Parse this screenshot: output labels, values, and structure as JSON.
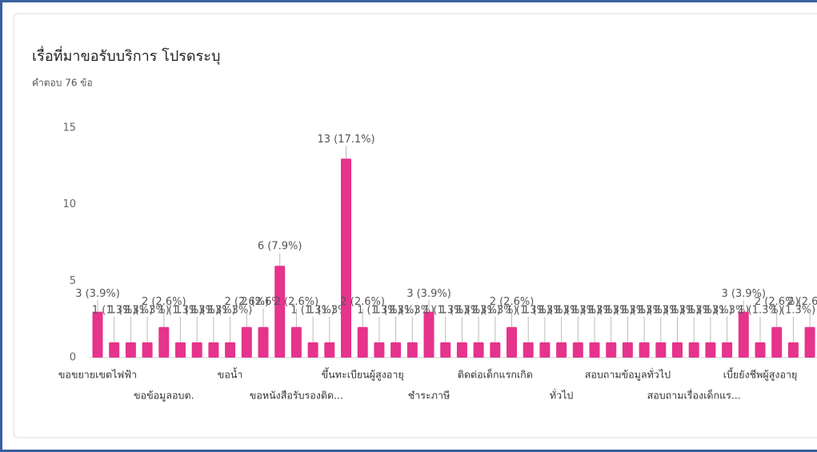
{
  "chart_data": {
    "type": "bar",
    "title": "เรื่อที่มาขอรับบริการ โปรดระบุ",
    "subtitle": "คำตอบ 76 ข้อ",
    "color": "#e6338c",
    "ylim": [
      0,
      15
    ],
    "yticks": [
      0,
      5,
      10,
      15
    ],
    "grid": false,
    "categories": [
      "ขอขยายเขตไฟฟ้า",
      null,
      null,
      null,
      "ขอข้อมูลอบต.",
      null,
      null,
      null,
      "ขอน้ำ",
      null,
      null,
      null,
      "ขอหนังสือรับรองติด...",
      null,
      null,
      null,
      "ขึ้นทะเบียนผู้สูงอายุ",
      null,
      null,
      null,
      "ชำระภาษี",
      null,
      null,
      null,
      "ติดต่อเด็กแรกเกิด",
      null,
      null,
      null,
      "ทั่วไป",
      null,
      null,
      null,
      "สอบถามข้อมูลทั่วไป",
      null,
      null,
      null,
      "สอบถามเรื่องเด็กแร...",
      null,
      null,
      null,
      "เบี้ยยังชีพผู้สูงอายุ",
      null,
      null,
      null
    ],
    "values": [
      3,
      1,
      1,
      1,
      2,
      1,
      1,
      1,
      1,
      2,
      2,
      6,
      2,
      1,
      1,
      13,
      2,
      1,
      1,
      1,
      3,
      1,
      1,
      1,
      1,
      2,
      1,
      1,
      1,
      1,
      1,
      1,
      1,
      1,
      1,
      1,
      1,
      1,
      1,
      3,
      1,
      2,
      1,
      2
    ],
    "value_labels": [
      "3 (3.9%)",
      "1 (1.3%)",
      "1 (1.3%)",
      "1 (1.3%)",
      "2 (2.6%)",
      "1 (1.3%)",
      "1 (1.3%)",
      "1 (1.3%)",
      "1 (1.3%)",
      "2 (2.6%)",
      "2 (2.6%)",
      "6 (7.9%)",
      "2 (2.6%)",
      "1 (1.3%)",
      "1 (1.3%)",
      "13 (17.1%)",
      "2 (2.6%)",
      "1 (1.3%)",
      "1 (1.3%)",
      "1 (1.3%)",
      "3 (3.9%)",
      "1 (1.3%)",
      "1 (1.3%)",
      "1 (1.3%)",
      "1 (1.3%)",
      "2 (2.6%)",
      "1 (1.3%)",
      "1 (1.3%)",
      "1 (1.3%)",
      "1 (1.3%)",
      "1 (1.3%)",
      "1 (1.3%)",
      "1 (1.3%)",
      "1 (1.3%)",
      "1 (1.3%)",
      "1 (1.3%)",
      "1 (1.3%)",
      "1 (1.3%)",
      "1 (1.3%)",
      "3 (3.9%)",
      "1 (1.3%)",
      "2 (2.6%)",
      "1 (1.3%)",
      "2 (2.6%)"
    ]
  }
}
